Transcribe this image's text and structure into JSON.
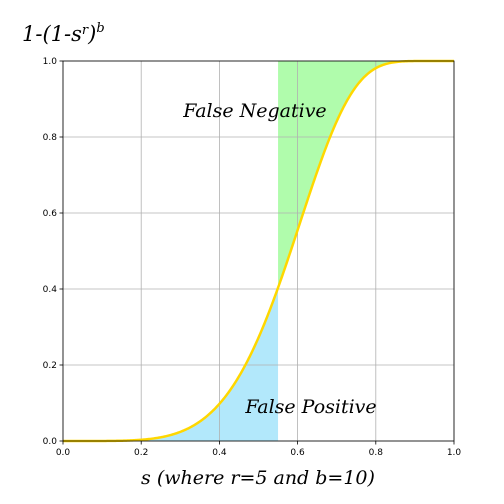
{
  "chart_data": {
    "type": "line",
    "title_main": "1-(1-s",
    "title_sup_r": "r",
    "title_close": ")",
    "title_sup_b": "b",
    "xlabel": "s (where r=5 and b=10)",
    "ylabel": "",
    "xlim": [
      0.0,
      1.0
    ],
    "ylim": [
      0.0,
      1.0
    ],
    "xticks": [
      "0.0",
      "0.2",
      "0.4",
      "0.6",
      "0.8",
      "1.0"
    ],
    "yticks": [
      "0.0",
      "0.2",
      "0.4",
      "0.6",
      "0.8",
      "1.0"
    ],
    "grid": true,
    "r": 5,
    "b": 10,
    "threshold_s": 0.55,
    "series": [
      {
        "function": "1-(1-s^r)^b",
        "color": "#FFD700",
        "x": [
          0.0,
          0.05,
          0.1,
          0.15,
          0.2,
          0.25,
          0.3,
          0.35,
          0.4,
          0.45,
          0.5,
          0.55,
          0.6,
          0.65,
          0.7,
          0.75,
          0.8,
          0.85,
          0.9,
          0.95,
          1.0
        ],
        "y": [
          0.0,
          0.0,
          0.0001,
          0.0008,
          0.0032,
          0.0097,
          0.024,
          0.0511,
          0.0973,
          0.1698,
          0.2718,
          0.4017,
          0.5517,
          0.7065,
          0.8446,
          0.9447,
          0.9921,
          0.9998,
          1.0,
          1.0,
          1.0
        ]
      }
    ],
    "regions": [
      {
        "label": "False Negative",
        "color": "#b0fcac",
        "x_from": 0.55,
        "x_to": 1.0,
        "between": "curve-and-top"
      },
      {
        "label": "False Positive",
        "color": "#b2e8fb",
        "x_from": 0.0,
        "x_to": 0.55,
        "between": "bottom-and-curve"
      }
    ]
  }
}
